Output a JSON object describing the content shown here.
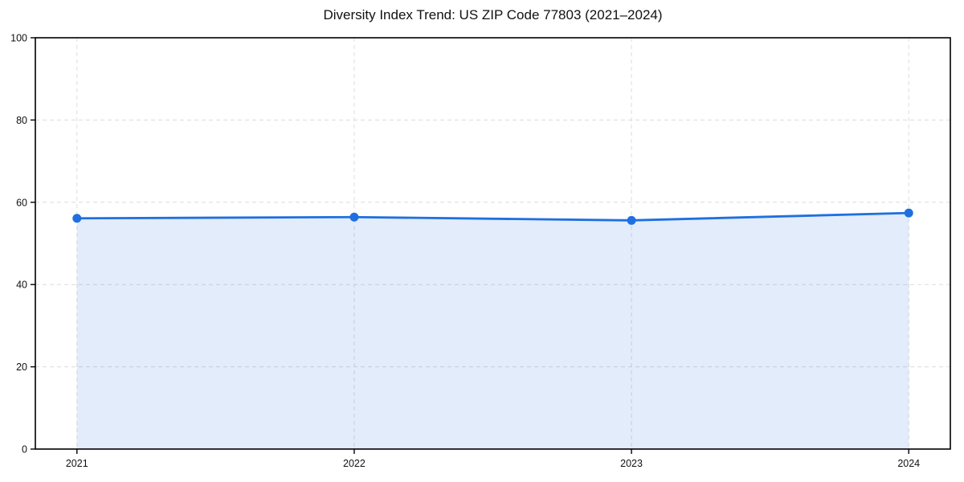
{
  "chart_data": {
    "type": "line",
    "title": "Diversity Index Trend: US ZIP Code 77803 (2021–2024)",
    "x_categories": [
      "2021",
      "2022",
      "2023",
      "2024"
    ],
    "series": [
      {
        "name": "Diversity Index",
        "values": [
          56.1,
          56.4,
          55.6,
          57.4
        ]
      }
    ],
    "ylim": [
      0,
      100
    ],
    "yticks": [
      0,
      20,
      40,
      60,
      80,
      100
    ],
    "grid": "dashed, horizontal and vertical",
    "legend_position": "none",
    "style": {
      "line_color": "#1f6fe0",
      "marker_color": "#1f6fe0",
      "area_fill_color": "rgba(31,111,224,0.13)",
      "grid_color": "#dcdcdc",
      "spine_color": "#000000",
      "tick_label_color": "#111111",
      "background_color": "#ffffff"
    }
  }
}
